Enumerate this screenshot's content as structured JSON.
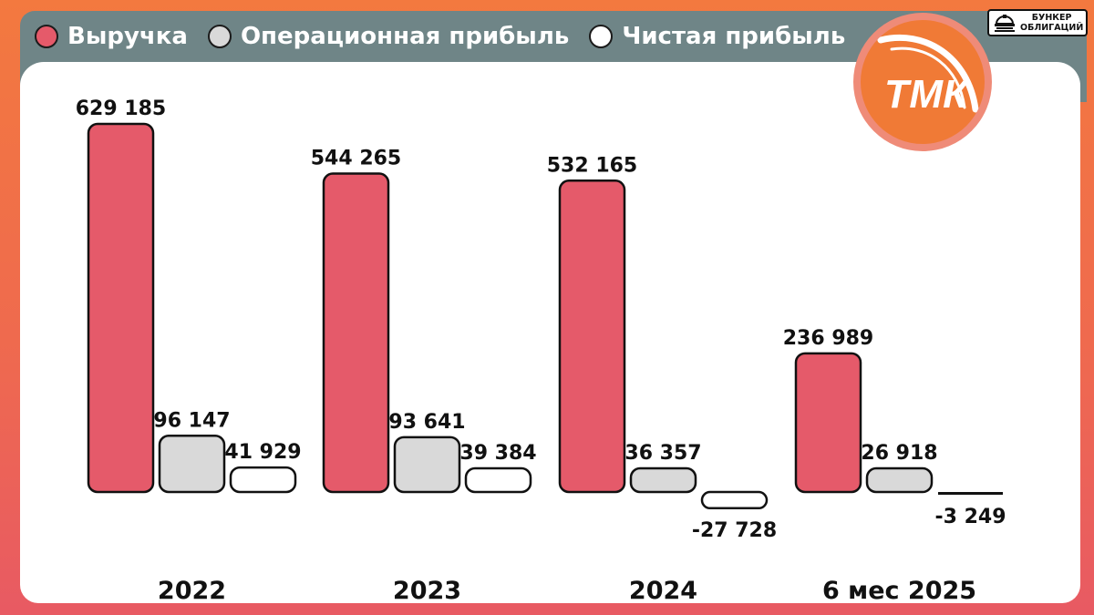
{
  "legend": {
    "revenue": "Выручка",
    "operating": "Операционная прибыль",
    "net": "Чистая прибыль"
  },
  "brand": {
    "line1": "БУНКЕР",
    "line2": "ОБЛИГАЦИЙ"
  },
  "logo": {
    "text": "ТМК"
  },
  "colors": {
    "revenue": "#e55a6a",
    "operating": "#d9d9d9",
    "net": "#ffffff",
    "accent_orange": "#f07a36",
    "header": "#6f8587"
  },
  "chart_data": {
    "type": "bar",
    "categories": [
      "2022",
      "2023",
      "2024",
      "6 мес 2025"
    ],
    "series": [
      {
        "name": "Выручка",
        "values": [
          629185,
          544265,
          532165,
          236989
        ],
        "labels": [
          "629 185",
          "544 265",
          "532 165",
          "236 989"
        ]
      },
      {
        "name": "Операционная прибыль",
        "values": [
          96147,
          93641,
          36357,
          26918
        ],
        "labels": [
          "96 147",
          "93 641",
          "36 357",
          "26 918"
        ]
      },
      {
        "name": "Чистая прибыль",
        "values": [
          41929,
          39384,
          -27728,
          -3249
        ],
        "labels": [
          "41 929",
          "39 384",
          "-27 728",
          "-3 249"
        ]
      }
    ],
    "xlabel": "",
    "ylabel": "",
    "grid": false,
    "legend_position": "top-left"
  }
}
